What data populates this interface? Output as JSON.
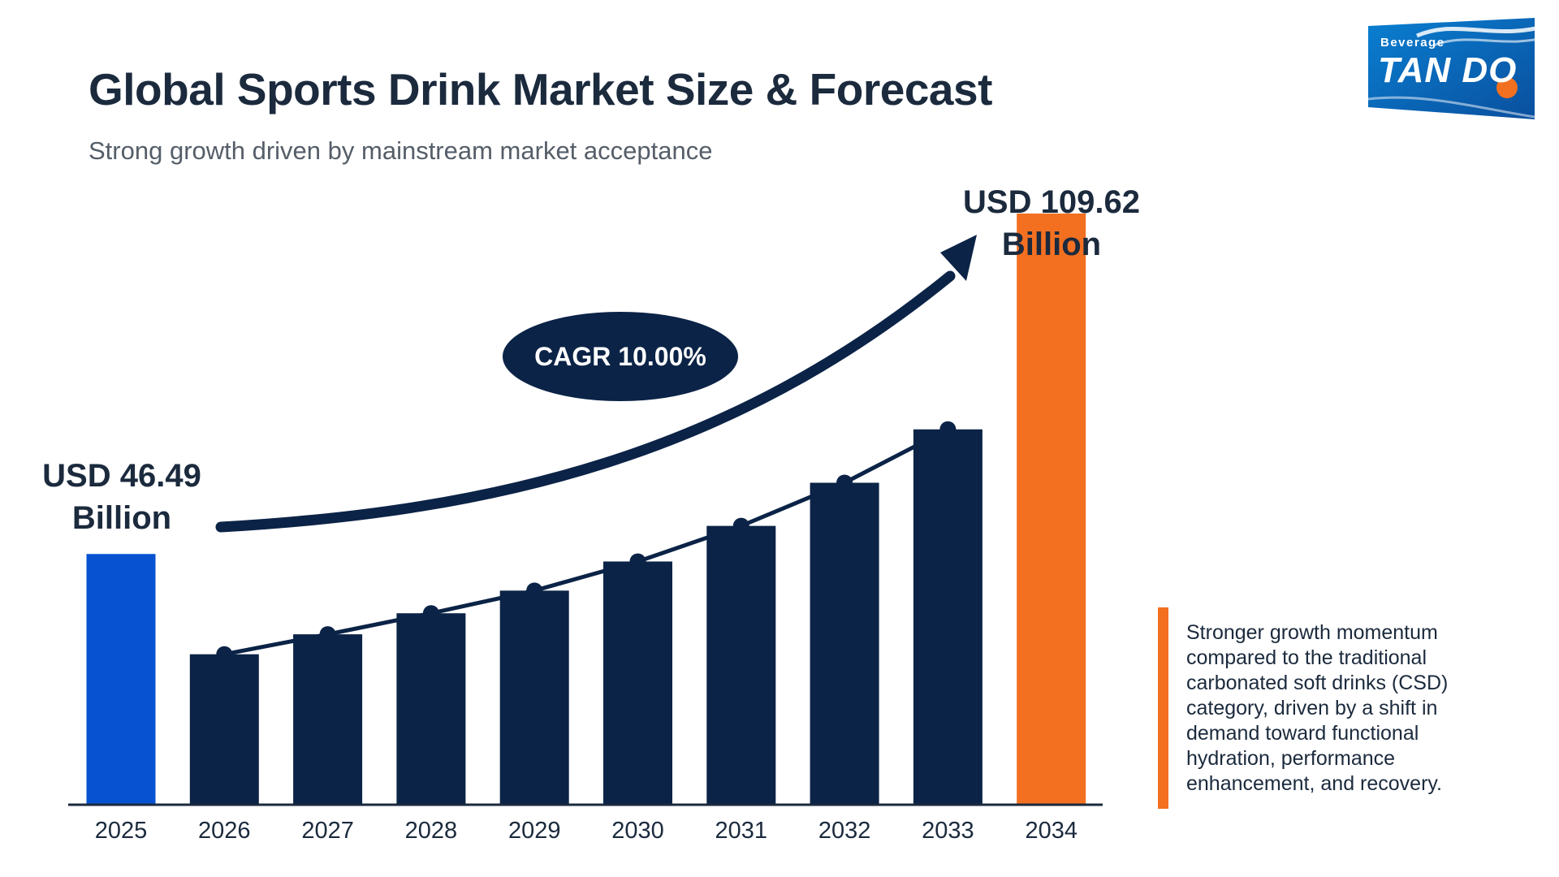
{
  "header": {
    "title": "Global Sports Drink Market Size & Forecast",
    "subtitle": "Strong growth driven by mainstream market acceptance"
  },
  "logo": {
    "small_text": "Beverage",
    "brand_text": "TAN DO",
    "colors": {
      "primary": "#0b63b3",
      "accent": "#f37021"
    }
  },
  "chart_data": {
    "type": "bar",
    "categories": [
      "2025",
      "2026",
      "2027",
      "2028",
      "2029",
      "2030",
      "2031",
      "2032",
      "2033",
      "2034"
    ],
    "values": [
      46.49,
      27.9,
      31.6,
      35.5,
      39.7,
      45.1,
      51.7,
      59.7,
      69.6,
      109.62
    ],
    "ylim": [
      0,
      120
    ],
    "grid": false,
    "legend": "none",
    "trend_line": true,
    "annotations": {
      "start_value": "USD 46.49",
      "start_unit": "Billion",
      "end_value": "USD 109.62",
      "end_unit": "Billion",
      "cagr": "CAGR 10.00%"
    },
    "colors": {
      "first_bar": "#0652d1",
      "middle_bars": "#0b2346",
      "last_bar": "#f37021",
      "arrow": "#0b2346"
    }
  },
  "note": {
    "text": "Stronger growth momentum compared to the traditional carbonated soft drinks (CSD) category, driven by a shift in demand toward functional hydration, performance enhancement, and recovery."
  }
}
